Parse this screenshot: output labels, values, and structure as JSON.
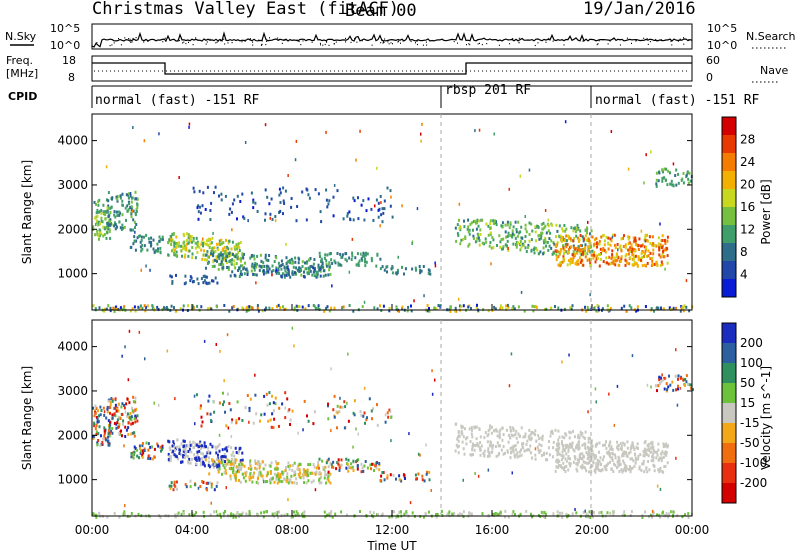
{
  "header": {
    "title": "Christmas Valley East (fitACF)",
    "beam": "Beam 00",
    "date": "19/Jan/2016"
  },
  "strips": {
    "nsky_label": "N.Sky",
    "nsearch_label": "N.Search",
    "freq_label": "Freq.",
    "freq_unit": "[MHz]",
    "nave_label": "Nave",
    "cpid_label": "CPID",
    "nsky_ticks": [
      "10^5",
      "10^0"
    ],
    "nsearch_ticks": [
      "10^5",
      "10^0"
    ],
    "freq_ticks": [
      "18",
      "8"
    ],
    "nave_ticks": [
      "60",
      "0"
    ]
  },
  "cpid_segments": [
    {
      "label": "normal (fast) -151 RF"
    },
    {
      "label": "rbsp 201 RF"
    },
    {
      "label": "normal (fast) -151 RF"
    }
  ],
  "chart_data": [
    {
      "type": "heatmap",
      "name": "power",
      "ylabel": "Slant Range [km]",
      "xlabel": "",
      "x_ticks": [
        "00:00",
        "04:00",
        "08:00",
        "12:00",
        "16:00",
        "20:00",
        "00:00"
      ],
      "y_ticks": [
        1000,
        2000,
        3000,
        4000
      ],
      "ylim": [
        180,
        4600
      ],
      "colorbar_label": "Power [dB]",
      "colorbar_ticks": [
        4,
        8,
        12,
        16,
        20,
        24,
        28
      ],
      "colorbar_colors": [
        "#0a1cd6",
        "#2148a8",
        "#2e6e8a",
        "#3f9e6a",
        "#76c040",
        "#c8d820",
        "#f4b000",
        "#f47c00",
        "#e83a00",
        "#d40000"
      ]
    },
    {
      "type": "heatmap",
      "name": "velocity",
      "ylabel": "Slant Range [km]",
      "xlabel": "Time UT",
      "x_ticks": [
        "00:00",
        "04:00",
        "08:00",
        "12:00",
        "16:00",
        "20:00",
        "00:00"
      ],
      "y_ticks": [
        1000,
        2000,
        3000,
        4000
      ],
      "ylim": [
        180,
        4600
      ],
      "colorbar_label": "Velocity [m s^-1]",
      "colorbar_ticks": [
        "200",
        "100",
        "50",
        "15",
        "-15",
        "-50",
        "-100",
        "-200"
      ],
      "colorbar_colors": [
        "#1a2dbf",
        "#2c5fa0",
        "#2f8f5e",
        "#6cc23a",
        "#c8c8c0",
        "#f2a818",
        "#f06e10",
        "#e83010",
        "#d40000"
      ]
    }
  ]
}
